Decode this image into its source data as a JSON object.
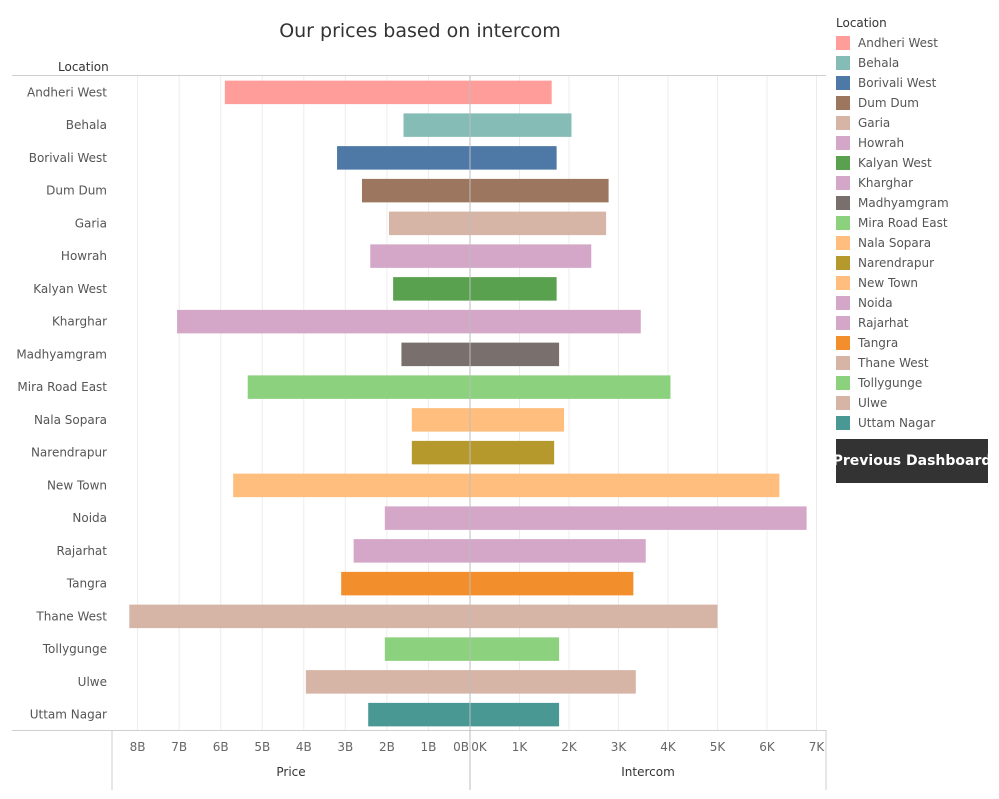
{
  "chart_data": {
    "type": "bar",
    "title": "Our prices based on intercom",
    "row_header": "Location",
    "categories": [
      "Andheri West",
      "Behala",
      "Borivali West",
      "Dum Dum",
      "Garia",
      "Howrah",
      "Kalyan West",
      "Kharghar",
      "Madhyamgram",
      "Mira Road East",
      "Nala Sopara",
      "Narendrapur",
      "New Town",
      "Noida",
      "Rajarhat",
      "Tangra",
      "Thane West",
      "Tollygunge",
      "Ulwe",
      "Uttam Nagar"
    ],
    "colors": [
      "#FF9D9A",
      "#86BCB6",
      "#4E79A7",
      "#9D7660",
      "#D7B5A6",
      "#D4A6C8",
      "#59A14F",
      "#D4A6C8",
      "#79706E",
      "#8CD17D",
      "#FFBE7D",
      "#B6992D",
      "#FFBE7D",
      "#D4A6C8",
      "#D4A6C8",
      "#F28E2B",
      "#D7B5A6",
      "#8CD17D",
      "#D7B5A6",
      "#499894"
    ],
    "series": [
      {
        "name": "Price",
        "xlabel": "Price",
        "values": [
          5.9,
          1.6,
          3.2,
          2.6,
          1.95,
          2.4,
          1.85,
          7.05,
          1.65,
          5.35,
          1.4,
          1.4,
          5.7,
          2.05,
          2.8,
          3.1,
          8.2,
          2.05,
          3.95,
          2.45
        ],
        "ticks": [
          "8B",
          "7B",
          "6B",
          "5B",
          "4B",
          "3B",
          "2B",
          "1B",
          "0B"
        ],
        "xlim": [
          0,
          8.5
        ]
      },
      {
        "name": "Intercom",
        "xlabel": "Intercom",
        "values": [
          1.65,
          2.05,
          1.75,
          2.8,
          2.75,
          2.45,
          1.75,
          3.45,
          1.8,
          4.05,
          1.9,
          1.7,
          6.25,
          6.8,
          3.55,
          3.3,
          5.0,
          1.8,
          3.35,
          1.8
        ],
        "ticks": [
          "0K",
          "1K",
          "2K",
          "3K",
          "4K",
          "5K",
          "6K",
          "7K"
        ],
        "xlim": [
          0,
          7.1
        ]
      }
    ],
    "grid": true,
    "legend_position": "right"
  },
  "legend": {
    "title": "Location",
    "items": [
      "Andheri West",
      "Behala",
      "Borivali West",
      "Dum Dum",
      "Garia",
      "Howrah",
      "Kalyan West",
      "Kharghar",
      "Madhyamgram",
      "Mira Road East",
      "Nala Sopara",
      "Narendrapur",
      "New Town",
      "Noida",
      "Rajarhat",
      "Tangra",
      "Thane West",
      "Tollygunge",
      "Ulwe",
      "Uttam Nagar"
    ]
  },
  "button": {
    "label": "Previous Dashboard"
  }
}
